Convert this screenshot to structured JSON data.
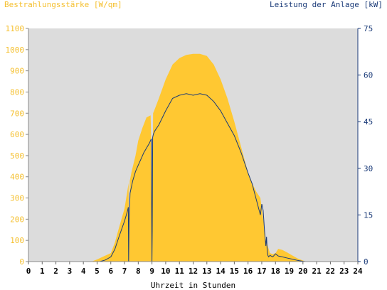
{
  "chart_data": {
    "type": "area",
    "title_left": "Bestrahlungsstärke [W/qm]",
    "title_right": "Leistung der Anlage [kW]",
    "xlabel": "Uhrzeit in Stunden",
    "x_ticks": [
      "0",
      "1",
      "2",
      "3",
      "4",
      "5",
      "6",
      "7",
      "8",
      "9",
      "10",
      "11",
      "12",
      "13",
      "14",
      "15",
      "16",
      "17",
      "18",
      "19",
      "20",
      "21",
      "22",
      "23",
      "24"
    ],
    "y_left_ticks": [
      "0",
      "100",
      "200",
      "300",
      "400",
      "500",
      "600",
      "700",
      "800",
      "900",
      "1000",
      "1100"
    ],
    "y_right_ticks": [
      "0",
      "15",
      "30",
      "45",
      "60",
      "75"
    ],
    "xlim": [
      0,
      24
    ],
    "ylim_left": [
      0,
      1100
    ],
    "ylim_right": [
      0,
      75
    ],
    "grid": false,
    "colors": {
      "irradiance": "#ffc832",
      "power": "#1a3a78",
      "plot_bg": "#dcdcdc",
      "left_axis": "#f5c030",
      "right_axis": "#1a3a78"
    },
    "series": [
      {
        "name": "Bestrahlungsstärke [W/qm]",
        "axis": "left",
        "style": "filled-area",
        "x": [
          0,
          4.6,
          5.0,
          5.5,
          6.0,
          6.3,
          6.6,
          7.0,
          7.2,
          7.3,
          7.32,
          7.38,
          7.5,
          7.8,
          8.0,
          8.3,
          8.6,
          8.9,
          9.0,
          9.02,
          9.08,
          9.15,
          9.5,
          10.0,
          10.5,
          11.0,
          11.5,
          12.0,
          12.5,
          13.0,
          13.5,
          14.0,
          14.5,
          15.0,
          15.5,
          16.0,
          16.3,
          16.6,
          16.9,
          17.0,
          17.1,
          17.2,
          17.3,
          17.4,
          17.5,
          17.6,
          17.8,
          18.0,
          18.2,
          18.5,
          18.8,
          19.2,
          19.6,
          20.0,
          20.2,
          24
        ],
        "y": [
          0,
          0,
          10,
          25,
          40,
          90,
          160,
          250,
          330,
          370,
          0,
          380,
          420,
          500,
          570,
          630,
          680,
          690,
          420,
          0,
          700,
          710,
          770,
          860,
          930,
          960,
          975,
          980,
          980,
          970,
          930,
          860,
          770,
          660,
          540,
          420,
          370,
          330,
          300,
          250,
          200,
          160,
          100,
          80,
          60,
          40,
          35,
          40,
          60,
          55,
          45,
          30,
          15,
          5,
          0,
          0
        ]
      },
      {
        "name": "Leistung der Anlage [kW]",
        "axis": "right",
        "style": "line",
        "x": [
          0,
          4.8,
          5.2,
          5.6,
          6.0,
          6.3,
          6.6,
          7.0,
          7.2,
          7.28,
          7.3,
          7.33,
          7.4,
          7.6,
          7.8,
          8.0,
          8.2,
          8.4,
          8.6,
          8.8,
          8.95,
          9.0,
          9.02,
          9.05,
          9.1,
          9.2,
          9.5,
          10.0,
          10.5,
          11.0,
          11.5,
          12.0,
          12.5,
          13.0,
          13.5,
          14.0,
          14.5,
          15.0,
          15.5,
          16.0,
          16.3,
          16.6,
          16.9,
          17.0,
          17.1,
          17.2,
          17.3,
          17.35,
          17.4,
          17.45,
          17.5,
          17.6,
          17.8,
          18.0,
          18.2,
          18.5,
          18.8,
          19.2,
          19.6,
          20.0,
          20.2,
          24
        ],
        "y": [
          0,
          0,
          0,
          0.5,
          1.5,
          4,
          8,
          13,
          16,
          17.5,
          0,
          13,
          22,
          26,
          29,
          31,
          33,
          35,
          36.5,
          38,
          39.5,
          0,
          10,
          40,
          41,
          42,
          44,
          48.5,
          52.5,
          53.5,
          54,
          53.5,
          54,
          53.5,
          51.5,
          48.5,
          44.5,
          40.5,
          35,
          28.5,
          25,
          20,
          15,
          18.5,
          16.5,
          10,
          5,
          8,
          3,
          2,
          1.5,
          2,
          1.5,
          2.5,
          1.8,
          1.5,
          1.2,
          0.8,
          0.4,
          0.1,
          0,
          0
        ]
      }
    ]
  }
}
